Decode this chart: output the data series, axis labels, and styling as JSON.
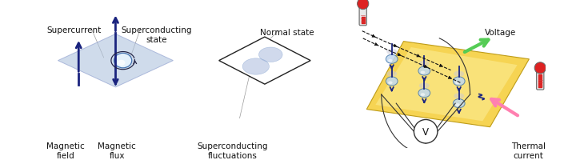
{
  "bg_color": "#ffffff",
  "panel1": {
    "diamond_color": "#b0c4de",
    "diamond_alpha": 0.6,
    "arrow_color": "#1a237e",
    "labels": {
      "mag_field": "Magnetic\nfield",
      "mag_flux": "Magnetic\nflux",
      "supercurrent": "Supercurrent",
      "sc_state": "Superconducting\nstate"
    }
  },
  "panel2": {
    "blob_color": "#aabbdd",
    "blob_alpha": 0.55,
    "labels": {
      "sc_fluct": "Superconducting\nfluctuations",
      "normal_state": "Normal state"
    }
  },
  "panel3": {
    "plate_color": "#f5d040",
    "plate_alpha": 0.9,
    "arrow_thermal_color": "#ff80b0",
    "arrow_voltage_color": "#55cc55",
    "arrow_blue": "#1a2580",
    "vortex_face": "#c0d8f0",
    "vortex_edge": "#4477aa",
    "thermo_body": "#cccccc",
    "thermo_red": "#dd2222",
    "labels": {
      "thermal": "Thermal\ncurrent",
      "voltage": "Voltage",
      "V": "V"
    }
  },
  "fontsize": 7.5,
  "label_color": "#111111"
}
